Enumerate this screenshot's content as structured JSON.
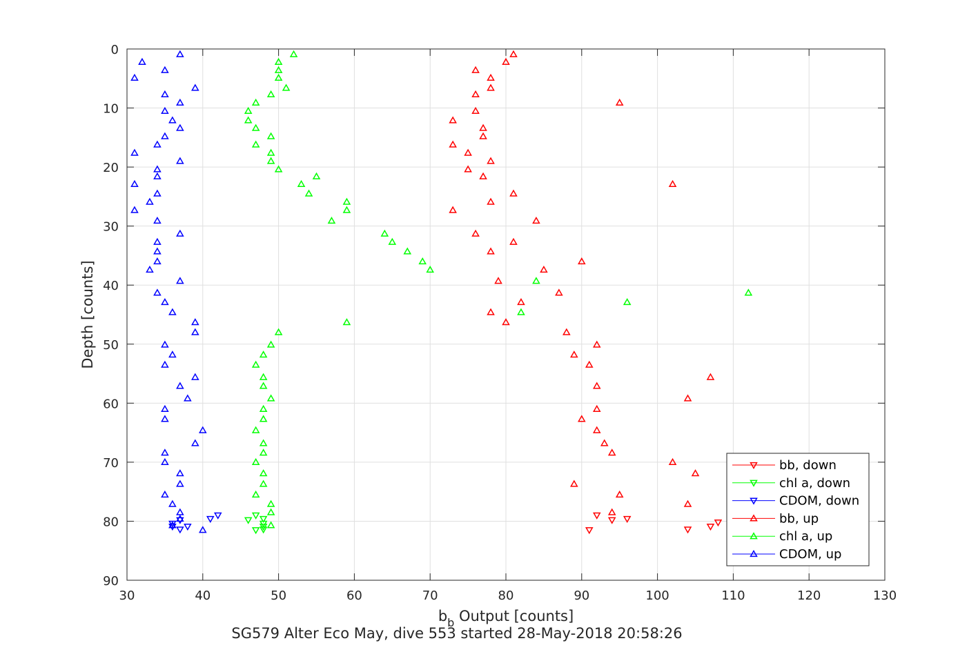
{
  "chart_data": {
    "type": "scatter",
    "title": "SG579 Alter Eco May, dive 553 started 28-May-2018 20:58:26",
    "xlabel_main": "b",
    "xlabel_sub": "b",
    "xlabel_rest": " Output [counts]",
    "ylabel": "Depth [counts]",
    "xlim": [
      30,
      130
    ],
    "ylim": [
      0,
      90
    ],
    "y_reversed": true,
    "x_ticks": [
      "30",
      "40",
      "50",
      "60",
      "70",
      "80",
      "90",
      "100",
      "110",
      "120",
      "130"
    ],
    "y_ticks": [
      "0",
      "10",
      "20",
      "30",
      "40",
      "50",
      "60",
      "70",
      "80",
      "90"
    ],
    "grid": true,
    "legend_position": "bottom-right",
    "series": [
      {
        "name": "bb, down",
        "color": "#ff0000",
        "marker": "triangle-down",
        "points": [
          [
            92,
            79
          ],
          [
            94,
            79.8
          ],
          [
            96,
            79.6
          ],
          [
            108,
            80.2
          ],
          [
            107,
            80.9
          ],
          [
            104,
            81.4
          ],
          [
            91,
            81.5
          ]
        ]
      },
      {
        "name": "chl a, down",
        "color": "#00ff00",
        "marker": "triangle-down",
        "points": [
          [
            47,
            79
          ],
          [
            46,
            79.8
          ],
          [
            48,
            79.6
          ],
          [
            48,
            80.4
          ],
          [
            48,
            80.9
          ],
          [
            47,
            81.5
          ],
          [
            48,
            81.4
          ]
        ]
      },
      {
        "name": "CDOM, down",
        "color": "#0000ff",
        "marker": "triangle-down",
        "points": [
          [
            42,
            79
          ],
          [
            41,
            79.6
          ],
          [
            37,
            79.8
          ],
          [
            36,
            80.4
          ],
          [
            36,
            80.9
          ],
          [
            38,
            80.9
          ],
          [
            37,
            81.4
          ]
        ]
      },
      {
        "name": "bb, up",
        "color": "#ff0000",
        "marker": "triangle-up",
        "points": [
          [
            81,
            0.9
          ],
          [
            80,
            2.2
          ],
          [
            76,
            3.6
          ],
          [
            78,
            4.9
          ],
          [
            78,
            6.6
          ],
          [
            76,
            7.7
          ],
          [
            95,
            9.1
          ],
          [
            76,
            10.5
          ],
          [
            73,
            12.1
          ],
          [
            77,
            13.4
          ],
          [
            77,
            14.8
          ],
          [
            73,
            16.2
          ],
          [
            75,
            17.6
          ],
          [
            78,
            19
          ],
          [
            75,
            20.4
          ],
          [
            77,
            21.6
          ],
          [
            102,
            22.9
          ],
          [
            81,
            24.5
          ],
          [
            78,
            25.9
          ],
          [
            73,
            27.3
          ],
          [
            84,
            29.1
          ],
          [
            76,
            31.3
          ],
          [
            81,
            32.7
          ],
          [
            78,
            34.3
          ],
          [
            90,
            36
          ],
          [
            85,
            37.4
          ],
          [
            79,
            39.3
          ],
          [
            87,
            41.3
          ],
          [
            82,
            42.9
          ],
          [
            78,
            44.6
          ],
          [
            80,
            46.3
          ],
          [
            88,
            48
          ],
          [
            92,
            50.1
          ],
          [
            89,
            51.8
          ],
          [
            91,
            53.5
          ],
          [
            107,
            55.6
          ],
          [
            92,
            57.1
          ],
          [
            104,
            59.2
          ],
          [
            92,
            61
          ],
          [
            90,
            62.7
          ],
          [
            92,
            64.6
          ],
          [
            93,
            66.8
          ],
          [
            94,
            68.4
          ],
          [
            102,
            70
          ],
          [
            105,
            71.9
          ],
          [
            89,
            73.7
          ],
          [
            95,
            75.5
          ],
          [
            104,
            77.1
          ],
          [
            94,
            78.5
          ]
        ]
      },
      {
        "name": "chl a, up",
        "color": "#00ff00",
        "marker": "triangle-up",
        "points": [
          [
            52,
            0.9
          ],
          [
            50,
            2.2
          ],
          [
            50,
            3.6
          ],
          [
            50,
            4.9
          ],
          [
            51,
            6.6
          ],
          [
            49,
            7.7
          ],
          [
            47,
            9.1
          ],
          [
            46,
            10.5
          ],
          [
            46,
            12.1
          ],
          [
            47,
            13.4
          ],
          [
            49,
            14.8
          ],
          [
            47,
            16.2
          ],
          [
            49,
            17.6
          ],
          [
            49,
            19
          ],
          [
            50,
            20.4
          ],
          [
            55,
            21.6
          ],
          [
            53,
            22.9
          ],
          [
            54,
            24.5
          ],
          [
            59,
            25.9
          ],
          [
            59,
            27.3
          ],
          [
            57,
            29.1
          ],
          [
            64,
            31.3
          ],
          [
            65,
            32.7
          ],
          [
            67,
            34.3
          ],
          [
            69,
            36
          ],
          [
            70,
            37.4
          ],
          [
            84,
            39.3
          ],
          [
            112,
            41.3
          ],
          [
            96,
            42.9
          ],
          [
            82,
            44.6
          ],
          [
            59,
            46.3
          ],
          [
            50,
            48
          ],
          [
            49,
            50.1
          ],
          [
            48,
            51.8
          ],
          [
            47,
            53.5
          ],
          [
            48,
            55.6
          ],
          [
            48,
            57.1
          ],
          [
            49,
            59.2
          ],
          [
            48,
            61
          ],
          [
            48,
            62.7
          ],
          [
            47,
            64.6
          ],
          [
            48,
            66.8
          ],
          [
            48,
            68.4
          ],
          [
            47,
            70
          ],
          [
            48,
            71.9
          ],
          [
            48,
            73.7
          ],
          [
            47,
            75.5
          ],
          [
            49,
            77.1
          ],
          [
            49,
            78.5
          ],
          [
            49,
            80.7
          ]
        ]
      },
      {
        "name": "CDOM, up",
        "color": "#0000ff",
        "marker": "triangle-up",
        "points": [
          [
            37,
            0.9
          ],
          [
            32,
            2.2
          ],
          [
            35,
            3.6
          ],
          [
            31,
            4.9
          ],
          [
            39,
            6.6
          ],
          [
            35,
            7.7
          ],
          [
            37,
            9.1
          ],
          [
            35,
            10.5
          ],
          [
            36,
            12.1
          ],
          [
            37,
            13.4
          ],
          [
            35,
            14.8
          ],
          [
            34,
            16.2
          ],
          [
            31,
            17.6
          ],
          [
            37,
            19
          ],
          [
            34,
            20.4
          ],
          [
            34,
            21.6
          ],
          [
            31,
            22.9
          ],
          [
            34,
            24.5
          ],
          [
            33,
            25.9
          ],
          [
            31,
            27.3
          ],
          [
            34,
            29.1
          ],
          [
            37,
            31.3
          ],
          [
            34,
            32.7
          ],
          [
            34,
            34.3
          ],
          [
            34,
            36
          ],
          [
            33,
            37.4
          ],
          [
            37,
            39.3
          ],
          [
            34,
            41.3
          ],
          [
            35,
            42.9
          ],
          [
            36,
            44.6
          ],
          [
            39,
            46.3
          ],
          [
            39,
            48
          ],
          [
            35,
            50.1
          ],
          [
            36,
            51.8
          ],
          [
            35,
            53.5
          ],
          [
            39,
            55.6
          ],
          [
            37,
            57.1
          ],
          [
            38,
            59.2
          ],
          [
            35,
            61
          ],
          [
            35,
            62.7
          ],
          [
            40,
            64.6
          ],
          [
            39,
            66.8
          ],
          [
            35,
            68.4
          ],
          [
            35,
            70
          ],
          [
            37,
            71.9
          ],
          [
            37,
            73.7
          ],
          [
            35,
            75.5
          ],
          [
            36,
            77.1
          ],
          [
            37,
            78.5
          ],
          [
            37,
            79.6
          ],
          [
            40,
            81.5
          ],
          [
            36,
            80.7
          ]
        ]
      }
    ]
  }
}
